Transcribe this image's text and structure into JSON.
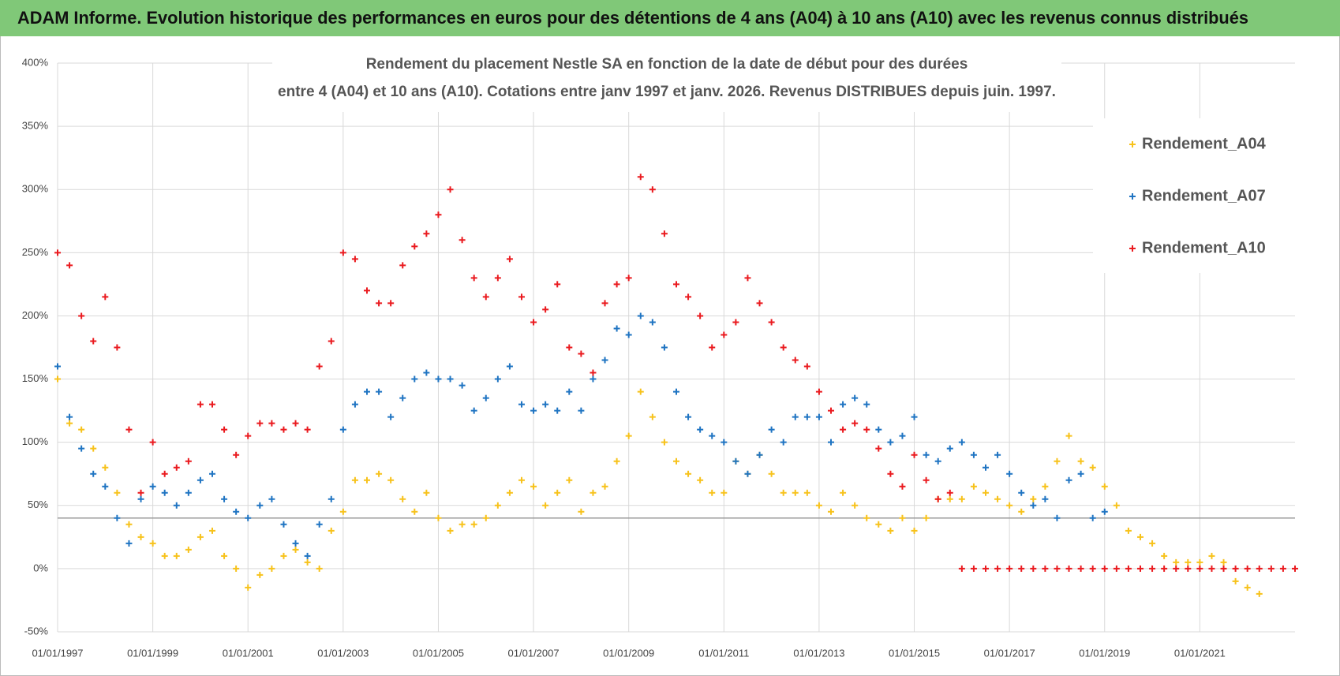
{
  "header": {
    "title": "ADAM Informe. Evolution historique des performances en euros pour des détentions de 4 ans (A04) à 10 ans (A10) avec les revenus connus distribués"
  },
  "chart_data": {
    "type": "scatter",
    "title": [
      "Rendement du placement Nestle SA en fonction de la date de début pour des durées",
      "entre 4 (A04) et 10 ans (A10).  Cotations entre janv 1997 et janv. 2026. Revenus DISTRIBUES depuis juin. 1997."
    ],
    "x": [
      "01/01/1997",
      "01/04/1997",
      "01/07/1997",
      "01/10/1997",
      "01/01/1998",
      "01/04/1998",
      "01/07/1998",
      "01/10/1998",
      "01/01/1999",
      "01/04/1999",
      "01/07/1999",
      "01/10/1999",
      "01/01/2000",
      "01/04/2000",
      "01/07/2000",
      "01/10/2000",
      "01/01/2001",
      "01/04/2001",
      "01/07/2001",
      "01/10/2001",
      "01/01/2002",
      "01/04/2002",
      "01/07/2002",
      "01/10/2002",
      "01/01/2003",
      "01/04/2003",
      "01/07/2003",
      "01/10/2003",
      "01/01/2004",
      "01/04/2004",
      "01/07/2004",
      "01/10/2004",
      "01/01/2005",
      "01/04/2005",
      "01/07/2005",
      "01/10/2005",
      "01/01/2006",
      "01/04/2006",
      "01/07/2006",
      "01/10/2006",
      "01/01/2007",
      "01/04/2007",
      "01/07/2007",
      "01/10/2007",
      "01/01/2008",
      "01/04/2008",
      "01/07/2008",
      "01/10/2008",
      "01/01/2009",
      "01/04/2009",
      "01/07/2009",
      "01/10/2009",
      "01/01/2010",
      "01/04/2010",
      "01/07/2010",
      "01/10/2010",
      "01/01/2011",
      "01/04/2011",
      "01/07/2011",
      "01/10/2011",
      "01/01/2012",
      "01/04/2012",
      "01/07/2012",
      "01/10/2012",
      "01/01/2013",
      "01/04/2013",
      "01/07/2013",
      "01/10/2013",
      "01/01/2014",
      "01/04/2014",
      "01/07/2014",
      "01/10/2014",
      "01/01/2015",
      "01/04/2015",
      "01/07/2015",
      "01/10/2015",
      "01/01/2016",
      "01/04/2016",
      "01/07/2016",
      "01/10/2016",
      "01/01/2017",
      "01/04/2017",
      "01/07/2017",
      "01/10/2017",
      "01/01/2018",
      "01/04/2018",
      "01/07/2018",
      "01/10/2018",
      "01/01/2019",
      "01/04/2019",
      "01/07/2019",
      "01/10/2019",
      "01/01/2020",
      "01/04/2020",
      "01/07/2020",
      "01/10/2020",
      "01/01/2021",
      "01/04/2021",
      "01/07/2021",
      "01/10/2021",
      "01/01/2022",
      "01/04/2022",
      "01/07/2022",
      "01/10/2022",
      "01/01/2023"
    ],
    "series": [
      {
        "name": "Rendement_A04",
        "color": "#f7c21b",
        "values": [
          150,
          115,
          110,
          95,
          80,
          60,
          35,
          25,
          20,
          10,
          10,
          15,
          25,
          30,
          10,
          0,
          -15,
          -5,
          0,
          10,
          15,
          5,
          0,
          30,
          45,
          70,
          70,
          75,
          70,
          55,
          45,
          60,
          40,
          30,
          35,
          35,
          40,
          50,
          60,
          70,
          65,
          50,
          60,
          70,
          45,
          60,
          65,
          85,
          105,
          140,
          120,
          100,
          85,
          75,
          70,
          60,
          60,
          85,
          75,
          90,
          75,
          60,
          60,
          60,
          50,
          45,
          60,
          50,
          40,
          35,
          30,
          40,
          30,
          40,
          55,
          55,
          55,
          65,
          60,
          55,
          50,
          45,
          55,
          65,
          85,
          105,
          85,
          80,
          65,
          50,
          30,
          25,
          20,
          10,
          5,
          5,
          5,
          10,
          5,
          -10,
          -15,
          -20,
          null,
          null,
          null
        ]
      },
      {
        "name": "Rendement_A07",
        "color": "#1f74c2",
        "values": [
          160,
          120,
          95,
          75,
          65,
          40,
          20,
          55,
          65,
          60,
          50,
          60,
          70,
          75,
          55,
          45,
          40,
          50,
          55,
          35,
          20,
          10,
          35,
          55,
          110,
          130,
          140,
          140,
          120,
          135,
          150,
          155,
          150,
          150,
          145,
          125,
          135,
          150,
          160,
          130,
          125,
          130,
          125,
          140,
          125,
          150,
          165,
          190,
          185,
          200,
          195,
          175,
          140,
          120,
          110,
          105,
          100,
          85,
          75,
          90,
          110,
          100,
          120,
          120,
          120,
          100,
          130,
          135,
          130,
          110,
          100,
          105,
          120,
          90,
          85,
          95,
          100,
          90,
          80,
          90,
          75,
          60,
          50,
          55,
          40,
          70,
          75,
          40,
          45,
          null,
          null,
          null,
          null,
          null,
          null,
          null,
          null,
          null,
          null,
          null,
          null,
          null,
          null,
          null,
          null
        ]
      },
      {
        "name": "Rendement_A10",
        "color": "#ea1a1f",
        "values": [
          250,
          240,
          200,
          180,
          215,
          175,
          110,
          60,
          100,
          75,
          80,
          85,
          130,
          130,
          110,
          90,
          105,
          115,
          115,
          110,
          115,
          110,
          160,
          180,
          250,
          245,
          220,
          210,
          210,
          240,
          255,
          265,
          280,
          300,
          260,
          230,
          215,
          230,
          245,
          215,
          195,
          205,
          225,
          175,
          170,
          155,
          210,
          225,
          230,
          310,
          300,
          265,
          225,
          215,
          200,
          175,
          185,
          195,
          230,
          210,
          195,
          175,
          165,
          160,
          140,
          125,
          110,
          115,
          110,
          95,
          75,
          65,
          90,
          70,
          55,
          60,
          0,
          0,
          0,
          0,
          0,
          0,
          0,
          0,
          0,
          0,
          0,
          0,
          0,
          0,
          0,
          0,
          0,
          0,
          0,
          0,
          0,
          0,
          0,
          0,
          0,
          0,
          0,
          0,
          0
        ]
      }
    ],
    "xlim": [
      "01/01/1997",
      "01/01/2023"
    ],
    "xticks": [
      "01/01/1997",
      "01/01/1999",
      "01/01/2001",
      "01/01/2003",
      "01/01/2005",
      "01/01/2007",
      "01/01/2009",
      "01/01/2011",
      "01/01/2013",
      "01/01/2015",
      "01/01/2017",
      "01/01/2019",
      "01/01/2021"
    ],
    "ylim": [
      -50,
      400
    ],
    "yticks": [
      {
        "value": -50,
        "label": "-50%"
      },
      {
        "value": 0,
        "label": "0%"
      },
      {
        "value": 50,
        "label": "50%"
      },
      {
        "value": 100,
        "label": "100%"
      },
      {
        "value": 150,
        "label": "150%"
      },
      {
        "value": 200,
        "label": "200%"
      },
      {
        "value": 250,
        "label": "250%"
      },
      {
        "value": 300,
        "label": "300%"
      },
      {
        "value": 350,
        "label": "350%"
      },
      {
        "value": 400,
        "label": "400%"
      }
    ],
    "reference_line": 40,
    "grid": true,
    "legend": "upper right"
  }
}
